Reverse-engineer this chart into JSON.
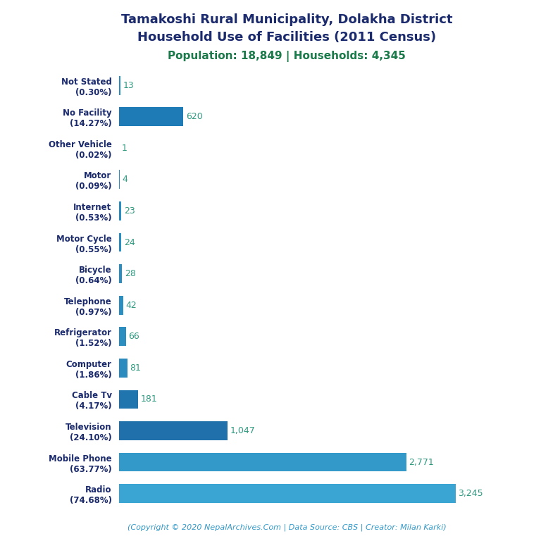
{
  "title_line1": "Tamakoshi Rural Municipality, Dolakha District",
  "title_line2": "Household Use of Facilities (2011 Census)",
  "subtitle": "Population: 18,849 | Households: 4,345",
  "footer": "(Copyright © 2020 NepalArchives.Com | Data Source: CBS | Creator: Milan Karki)",
  "categories": [
    "Not Stated\n(0.30%)",
    "No Facility\n(14.27%)",
    "Other Vehicle\n(0.02%)",
    "Motor\n(0.09%)",
    "Internet\n(0.53%)",
    "Motor Cycle\n(0.55%)",
    "Bicycle\n(0.64%)",
    "Telephone\n(0.97%)",
    "Refrigerator\n(1.52%)",
    "Computer\n(1.86%)",
    "Cable Tv\n(4.17%)",
    "Television\n(24.10%)",
    "Mobile Phone\n(63.77%)",
    "Radio\n(74.68%)"
  ],
  "values": [
    13,
    620,
    1,
    4,
    23,
    24,
    28,
    42,
    66,
    81,
    181,
    1047,
    2771,
    3245
  ],
  "value_labels": [
    "13",
    "620",
    "1",
    "4",
    "23",
    "24",
    "28",
    "42",
    "66",
    "81",
    "181",
    "1,047",
    "2,771",
    "3,245"
  ],
  "bar_colors": [
    "#2a8fc0",
    "#1f7bb5",
    "#2a8fc0",
    "#2a8fc0",
    "#2a8fc0",
    "#2a8fc0",
    "#2a8fc0",
    "#2a8fc0",
    "#2b8ec0",
    "#2b8bbf",
    "#2175ae",
    "#2070ab",
    "#3399c8",
    "#3aa5d2"
  ],
  "title_color": "#1a2a6c",
  "subtitle_color": "#1a7a4a",
  "footer_color": "#3399c8",
  "value_label_color": "#2e9980",
  "background_color": "#ffffff",
  "xlim": [
    0,
    3600
  ]
}
